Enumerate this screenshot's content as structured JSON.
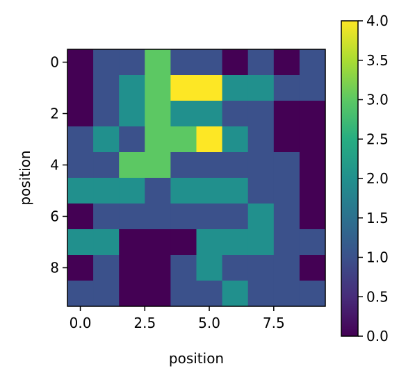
{
  "chart_data": {
    "type": "heatmap",
    "title": "",
    "xlabel": "position",
    "ylabel": "position",
    "colormap": "viridis",
    "colorbar_range": [
      0.0,
      4.0
    ],
    "xlim": [
      -0.5,
      9.5
    ],
    "ylim": [
      9.5,
      -0.5
    ],
    "x_tick_values": [
      0.0,
      2.5,
      5.0,
      7.5
    ],
    "x_tick_labels": [
      "0.0",
      "2.5",
      "5.0",
      "7.5"
    ],
    "y_tick_values": [
      0,
      2,
      4,
      6,
      8
    ],
    "y_tick_labels": [
      "0",
      "2",
      "4",
      "6",
      "8"
    ],
    "colorbar_tick_values": [
      0.0,
      0.5,
      1.0,
      1.5,
      2.0,
      2.5,
      3.0,
      3.5,
      4.0
    ],
    "colorbar_tick_labels": [
      "0.0",
      "0.5",
      "1.0",
      "1.5",
      "2.0",
      "2.5",
      "3.0",
      "3.5",
      "4.0"
    ],
    "grid": false,
    "legend": "colorbar at right",
    "values": [
      [
        0,
        1,
        1,
        3,
        1,
        1,
        0,
        1,
        0,
        1
      ],
      [
        0,
        1,
        2,
        3,
        4,
        4,
        2,
        2,
        1,
        1
      ],
      [
        0,
        1,
        2,
        3,
        2,
        2,
        1,
        1,
        0,
        0
      ],
      [
        1,
        2,
        1,
        3,
        3,
        4,
        2,
        1,
        0,
        0
      ],
      [
        1,
        1,
        3,
        3,
        1,
        1,
        1,
        1,
        1,
        0
      ],
      [
        2,
        2,
        2,
        1,
        2,
        2,
        2,
        1,
        1,
        0
      ],
      [
        0,
        1,
        1,
        1,
        1,
        1,
        1,
        2,
        1,
        0
      ],
      [
        2,
        2,
        0,
        0,
        0,
        2,
        2,
        2,
        1,
        1
      ],
      [
        0,
        1,
        0,
        0,
        1,
        2,
        1,
        1,
        1,
        0
      ],
      [
        1,
        1,
        0,
        0,
        1,
        1,
        2,
        1,
        1,
        1
      ]
    ]
  }
}
